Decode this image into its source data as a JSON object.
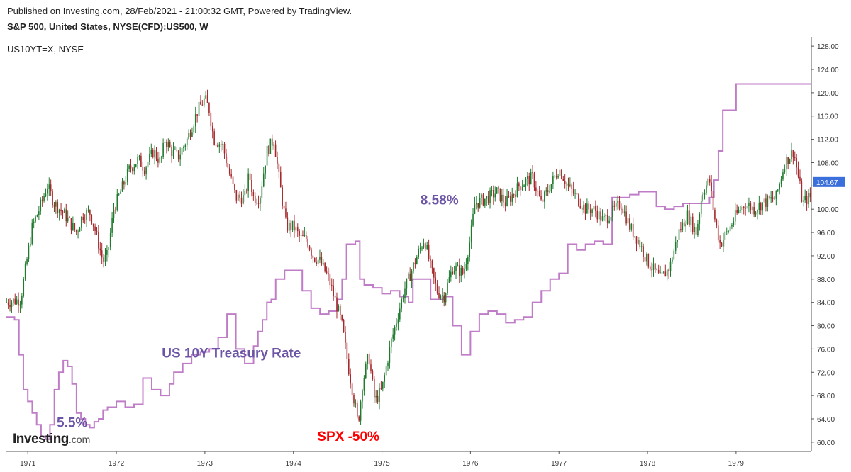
{
  "header": {
    "published": "Published on Investing.com, 28/Feb/2021 - 21:00:32 GMT, Powered by TradingView.",
    "symbol": "S&P 500, United States, NYSE(CFD):US500, W",
    "indicator": "US10YT=X, NYSE"
  },
  "brand": {
    "main": "Investing",
    "suffix": ".com"
  },
  "colors": {
    "up": "#1f7a2e",
    "down": "#a5282b",
    "rate": "#c07dc7",
    "annotation": "#6c54a6",
    "spx_annotation": "#ff0000",
    "last_price_bg": "#3b6fdb"
  },
  "chart_data": {
    "type": "candlestick+line",
    "x_ticks": [
      "1971",
      "1972",
      "1973",
      "1974",
      "1975",
      "1976",
      "1977",
      "1978",
      "1979"
    ],
    "y_ticks": [
      60,
      64,
      68,
      72,
      76,
      80,
      84,
      88,
      92,
      96,
      100,
      104,
      108,
      112,
      116,
      120,
      124,
      128
    ],
    "y_tick_labels": [
      "60.00",
      "64.00",
      "68.00",
      "72.00",
      "76.00",
      "80.00",
      "84.00",
      "88.00",
      "92.00",
      "96.00",
      "100.00",
      "",
      "108.00",
      "112.00",
      "116.00",
      "120.00",
      "124.00",
      "128.00"
    ],
    "ylim": [
      58.4,
      129.6
    ],
    "xlim": [
      1970.75,
      1979.85
    ],
    "last_price_label": "104.67",
    "last_price": 104.67,
    "spx_series": {
      "x": [
        1970.75,
        1970.92,
        1971.05,
        1971.13,
        1971.22,
        1971.3,
        1971.42,
        1971.55,
        1971.62,
        1971.7,
        1971.75,
        1971.85,
        1971.9,
        1971.97,
        1972.05,
        1972.15,
        1972.25,
        1972.32,
        1972.42,
        1972.5,
        1972.55,
        1972.62,
        1972.7,
        1972.8,
        1972.92,
        1973.0,
        1973.05,
        1973.1,
        1973.2,
        1973.28,
        1973.35,
        1973.45,
        1973.5,
        1973.55,
        1973.62,
        1973.7,
        1973.78,
        1973.85,
        1973.92,
        1974.0,
        1974.08,
        1974.15,
        1974.22,
        1974.3,
        1974.4,
        1974.48,
        1974.55,
        1974.62,
        1974.7,
        1974.73,
        1974.78,
        1974.85,
        1974.92,
        1975.0,
        1975.1,
        1975.25,
        1975.4,
        1975.48,
        1975.55,
        1975.62,
        1975.7,
        1975.8,
        1975.92,
        1976.0,
        1976.05,
        1976.2,
        1976.3,
        1976.4,
        1976.55,
        1976.65,
        1976.7,
        1976.8,
        1976.9,
        1977.0,
        1977.1,
        1977.2,
        1977.3,
        1977.4,
        1977.5,
        1977.6,
        1977.7,
        1977.8,
        1977.9,
        1978.0,
        1978.1,
        1978.15,
        1978.25,
        1978.35,
        1978.45,
        1978.55,
        1978.62,
        1978.7,
        1978.75,
        1978.82,
        1978.9,
        1979.0,
        1979.1,
        1979.2,
        1979.3,
        1979.45,
        1979.55,
        1979.65,
        1979.72,
        1979.75,
        1979.82
      ],
      "close": [
        84.0,
        84.5,
        97.0,
        100.0,
        104.0,
        101.0,
        99.0,
        96.0,
        99.0,
        99.5,
        97.0,
        91.0,
        92.0,
        100.0,
        103.0,
        107.0,
        108.5,
        107.0,
        110.0,
        108.0,
        112.0,
        110.0,
        109.0,
        112.0,
        117.0,
        119.0,
        117.0,
        112.0,
        111.0,
        106.0,
        102.0,
        102.0,
        106.0,
        102.0,
        102.0,
        110.0,
        112.0,
        104.0,
        97.0,
        97.0,
        95.0,
        95.0,
        92.0,
        91.0,
        88.0,
        84.0,
        80.0,
        73.0,
        66.0,
        63.0,
        70.0,
        75.0,
        67.0,
        69.0,
        77.0,
        86.0,
        92.0,
        95.0,
        90.0,
        86.0,
        85.0,
        90.0,
        89.0,
        95.0,
        101.0,
        102.0,
        103.0,
        101.0,
        104.0,
        105.0,
        105.5,
        101.0,
        104.0,
        107.0,
        104.0,
        102.0,
        100.0,
        100.0,
        98.0,
        99.5,
        101.0,
        97.0,
        94.5,
        91.0,
        89.0,
        88.0,
        90.0,
        96.0,
        99.0,
        96.0,
        103.0,
        105.0,
        99.0,
        94.0,
        96.0,
        99.0,
        101.0,
        100.0,
        101.0,
        102.0,
        108.0,
        110.0,
        104.0,
        101.0,
        102.0
      ]
    },
    "rate_series": {
      "name": "US 10Y Treasury Rate",
      "x": [
        1970.75,
        1970.85,
        1970.9,
        1970.95,
        1971.0,
        1971.05,
        1971.1,
        1971.15,
        1971.2,
        1971.25,
        1971.3,
        1971.35,
        1971.4,
        1971.45,
        1971.5,
        1971.55,
        1971.6,
        1971.65,
        1971.7,
        1971.75,
        1971.8,
        1971.85,
        1971.9,
        1972.0,
        1972.1,
        1972.2,
        1972.3,
        1972.4,
        1972.5,
        1972.6,
        1972.65,
        1972.75,
        1972.85,
        1972.95,
        1973.05,
        1973.15,
        1973.25,
        1973.35,
        1973.45,
        1973.55,
        1973.6,
        1973.65,
        1973.7,
        1973.75,
        1973.8,
        1973.9,
        1974.0,
        1974.1,
        1974.2,
        1974.3,
        1974.4,
        1974.5,
        1974.55,
        1974.6,
        1974.7,
        1974.75,
        1974.8,
        1974.9,
        1975.0,
        1975.1,
        1975.2,
        1975.3,
        1975.35,
        1975.5,
        1975.55,
        1975.7,
        1975.8,
        1975.9,
        1976.0,
        1976.1,
        1976.2,
        1976.3,
        1976.4,
        1976.5,
        1976.6,
        1976.7,
        1976.8,
        1976.9,
        1977.0,
        1977.1,
        1977.2,
        1977.3,
        1977.4,
        1977.5,
        1977.6,
        1977.7,
        1977.8,
        1977.9,
        1978.0,
        1978.1,
        1978.2,
        1978.3,
        1978.4,
        1978.5,
        1978.6,
        1978.7,
        1978.75,
        1978.8,
        1978.85,
        1978.9,
        1979.0,
        1979.1,
        1979.2,
        1979.3,
        1979.4,
        1979.5,
        1979.6,
        1979.7,
        1979.75,
        1979.8,
        1979.85
      ],
      "y": [
        81.5,
        81.0,
        75.0,
        69.0,
        67.0,
        65.0,
        63.0,
        61.0,
        60.5,
        63.0,
        69.0,
        72.0,
        74.0,
        73.0,
        70.0,
        65.0,
        64.0,
        63.0,
        62.5,
        63.5,
        64.0,
        65.5,
        66.0,
        67.0,
        66.0,
        66.5,
        71.0,
        69.0,
        68.0,
        70.0,
        72.0,
        73.5,
        75.0,
        75.5,
        76.0,
        78.0,
        82.0,
        76.0,
        73.5,
        76.5,
        79.0,
        81.0,
        84.0,
        84.5,
        88.0,
        89.5,
        89.5,
        86.0,
        83.0,
        82.0,
        82.5,
        84.5,
        88.0,
        94.0,
        94.5,
        88.0,
        87.0,
        86.5,
        85.5,
        86.0,
        85.0,
        84.0,
        88.0,
        88.0,
        84.5,
        85.0,
        80.0,
        75.0,
        79.0,
        82.0,
        82.5,
        82.0,
        80.5,
        81.0,
        81.5,
        84.0,
        86.0,
        88.0,
        89.0,
        94.0,
        93.0,
        94.0,
        94.5,
        94.0,
        102.0,
        102.0,
        102.5,
        103.0,
        103.0,
        100.5,
        100.0,
        100.5,
        101.0,
        101.0,
        101.0,
        102.0,
        105.0,
        110.0,
        117.0,
        117.0,
        121.5,
        121.5,
        121.5,
        121.5,
        121.5,
        121.5,
        121.5,
        121.5,
        121.5,
        121.5,
        121.5
      ]
    },
    "annotations": [
      {
        "text": "US 10Y Treasury Rate",
        "x": 1973.3,
        "y": 74.5,
        "color": "#6c54a6"
      },
      {
        "text": "8.58%",
        "x": 1975.65,
        "y": 100.8,
        "color": "#6c54a6"
      },
      {
        "text": "5.5%",
        "x": 1971.5,
        "y": 62.6,
        "color": "#6c54a6"
      },
      {
        "text": "SPX -50%",
        "x": 1974.62,
        "y": 60.2,
        "color": "#ff0000"
      }
    ]
  }
}
